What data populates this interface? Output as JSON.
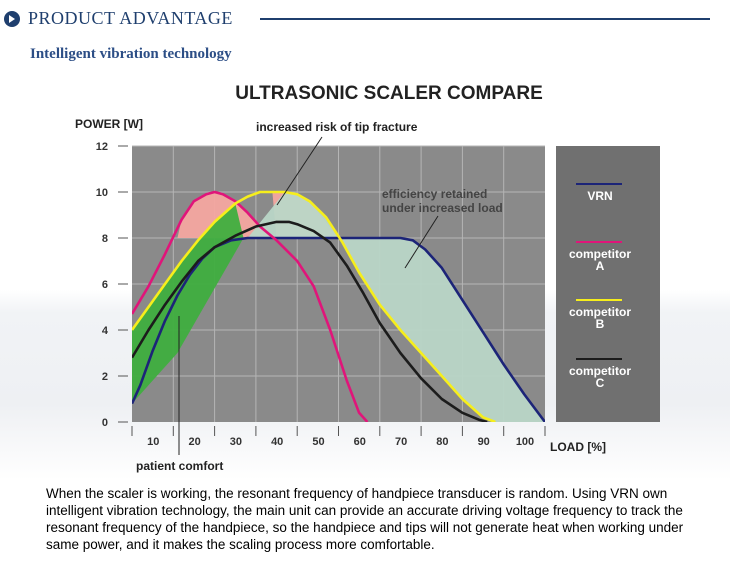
{
  "header": {
    "title": "PRODUCT ADVANTAGE"
  },
  "subtitle": "Intelligent vibration technology",
  "description": "When the scaler is working, the resonant frequency of handpiece transducer is random. Using VRN own intelligent vibration technology, the main unit can provide an accurate driving voltage frequency to track the resonant frequency of the handpiece, so the handpiece and tips will not generate heat when working under same power, and it makes the scaling process more comfortable.",
  "colors": {
    "plot_bg": "#8a8a8a",
    "legend_bg": "#707070",
    "grid": "#b5b5b5",
    "vrn": "#1c2478",
    "competitor_a": "#e0157a",
    "competitor_b": "#f6ee1c",
    "competitor_c": "#1c1c1c",
    "fill_risk": "#f4a6a0",
    "fill_efficiency": "#b9d6c7",
    "fill_comfort": "#3fae3f"
  },
  "chart_data": {
    "type": "line",
    "title": "ULTRASONIC SCALER COMPARE",
    "ylabel": "POWER [W]",
    "xlabel": "LOAD [%]",
    "xlim": [
      0,
      100
    ],
    "ylim": [
      0,
      12
    ],
    "yticks": [
      0,
      2,
      4,
      6,
      8,
      10,
      12
    ],
    "xticks": [
      10,
      20,
      30,
      40,
      50,
      60,
      70,
      80,
      90,
      100
    ],
    "grid": true,
    "legend_position": "right",
    "series": [
      {
        "name": "VRN",
        "key": "vrn",
        "x": [
          0,
          2,
          5,
          8,
          11,
          14,
          17,
          20,
          24,
          28,
          65,
          68,
          71,
          75,
          80,
          85,
          90,
          95,
          100
        ],
        "y": [
          0.8,
          1.6,
          3.1,
          4.4,
          5.5,
          6.4,
          7.1,
          7.6,
          7.9,
          8.0,
          8.0,
          7.9,
          7.5,
          6.7,
          5.3,
          3.9,
          2.5,
          1.2,
          0.0
        ]
      },
      {
        "name": "competitor A",
        "key": "competitor_a",
        "x": [
          0,
          4,
          8,
          12,
          15,
          18,
          20,
          22,
          25,
          28,
          31,
          35,
          40,
          44,
          48,
          52,
          55,
          57
        ],
        "y": [
          4.7,
          5.9,
          7.3,
          8.8,
          9.6,
          9.9,
          10.0,
          9.9,
          9.6,
          9.1,
          8.5,
          7.9,
          7.0,
          5.9,
          4.0,
          1.8,
          0.4,
          0.0
        ]
      },
      {
        "name": "competitor B",
        "key": "competitor_b",
        "x": [
          0,
          4,
          8,
          12,
          16,
          20,
          25,
          28,
          31,
          34,
          37,
          40,
          43,
          47,
          51,
          55,
          60,
          65,
          70,
          75,
          80,
          85,
          88
        ],
        "y": [
          4.0,
          5.0,
          6.0,
          7.0,
          7.9,
          8.7,
          9.5,
          9.8,
          10.0,
          10.0,
          10.0,
          9.9,
          9.6,
          8.9,
          7.8,
          6.5,
          5.1,
          4.0,
          3.0,
          2.0,
          1.0,
          0.2,
          0.0
        ]
      },
      {
        "name": "competitor C",
        "key": "competitor_c",
        "x": [
          0,
          4,
          8,
          12,
          16,
          20,
          25,
          30,
          35,
          38,
          40,
          44,
          48,
          52,
          56,
          60,
          65,
          70,
          75,
          80,
          84,
          86
        ],
        "y": [
          2.8,
          4.0,
          5.1,
          6.1,
          7.0,
          7.6,
          8.1,
          8.5,
          8.7,
          8.7,
          8.6,
          8.3,
          7.8,
          6.8,
          5.6,
          4.3,
          3.0,
          1.9,
          1.0,
          0.4,
          0.1,
          0.0
        ]
      }
    ],
    "annotations": [
      {
        "text": "increased risk of tip fracture"
      },
      {
        "text": "efficiency retained"
      },
      {
        "text": "under increased load"
      },
      {
        "text": "patient comfort"
      }
    ]
  }
}
